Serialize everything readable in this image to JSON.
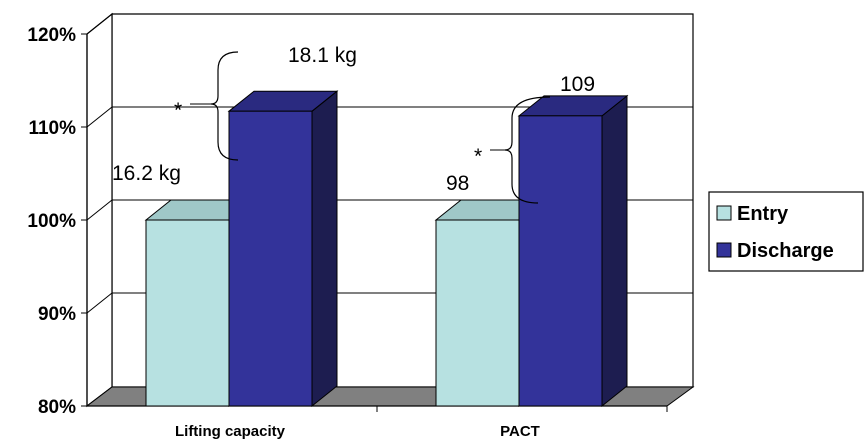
{
  "chart_data": {
    "type": "bar",
    "title": "",
    "xlabel": "",
    "ylabel": "",
    "categories": [
      "Lifting capacity",
      "PACT"
    ],
    "series": [
      {
        "name": "Entry",
        "values": [
          100,
          100
        ],
        "color": "#b7e1e1"
      },
      {
        "name": "Discharge",
        "values": [
          111.7,
          111.2
        ],
        "color": "#33339a"
      }
    ],
    "ylim": [
      80,
      120
    ],
    "yticks": [
      "80%",
      "90%",
      "100%",
      "110%",
      "120%"
    ],
    "grid": true,
    "three_d": true,
    "legend_position": "right",
    "annotations": {
      "lifting_entry": "16.2 kg",
      "lifting_discharge": "18.1 kg",
      "pact_entry": "98",
      "pact_discharge": "109",
      "significance": "*"
    }
  }
}
